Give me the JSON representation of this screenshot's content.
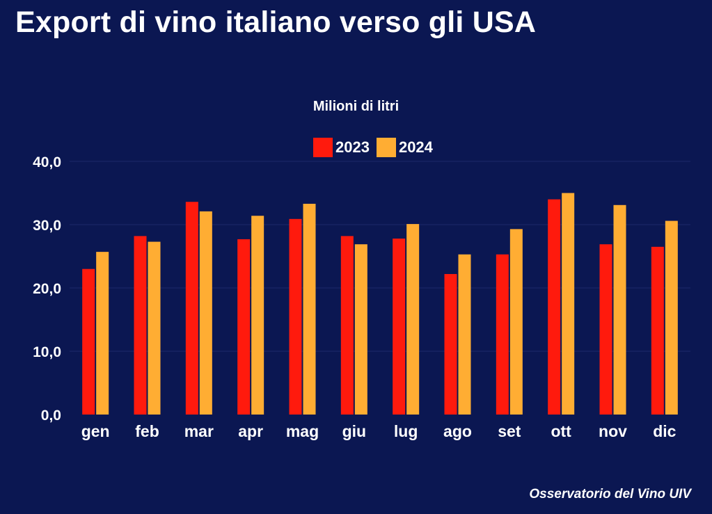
{
  "title": "Export di vino italiano verso gli USA",
  "source": "Osservatorio del Vino UIV",
  "colors": {
    "background": "#0b1752",
    "s2023": "#ff1a0d",
    "s2024": "#ffad33",
    "grid": "#1c2a6b"
  },
  "chart_data": {
    "type": "bar",
    "title": "Export di vino italiano verso gli USA",
    "subtitle": "Milioni di litri",
    "categories": [
      "gen",
      "feb",
      "mar",
      "apr",
      "mag",
      "giu",
      "lug",
      "ago",
      "set",
      "ott",
      "nov",
      "dic"
    ],
    "series": [
      {
        "name": "2023",
        "color": "#ff1a0d",
        "values": [
          23.0,
          28.2,
          33.6,
          27.7,
          30.9,
          28.2,
          27.8,
          22.2,
          25.3,
          34.0,
          26.9,
          26.5
        ]
      },
      {
        "name": "2024",
        "color": "#ffad33",
        "values": [
          25.7,
          27.3,
          32.1,
          31.4,
          33.3,
          26.9,
          30.1,
          25.3,
          29.3,
          35.0,
          33.1,
          30.6
        ]
      }
    ],
    "yticks": [
      "0,0",
      "10,0",
      "20,0",
      "30,0",
      "40,0"
    ],
    "ylim": [
      0,
      40
    ],
    "legend_position": "top-center",
    "grid": true
  }
}
